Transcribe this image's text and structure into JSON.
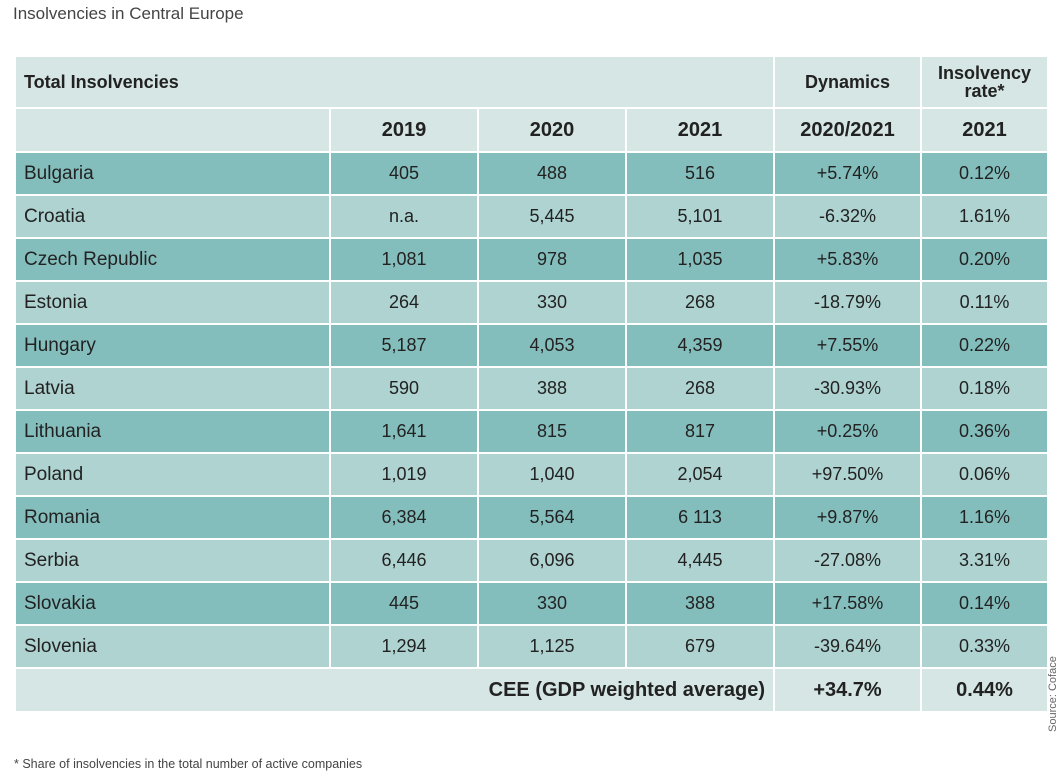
{
  "title": "Insolvencies in Central Europe",
  "table": {
    "header_row1": {
      "total_label": "Total Insolvencies",
      "dynamics_label": "Dynamics",
      "rate_label": "Insolvency rate*"
    },
    "header_row2": [
      "2019",
      "2020",
      "2021",
      "2020/2021",
      "2021"
    ],
    "rows": [
      {
        "country": "Bulgaria",
        "y2019": "405",
        "y2020": "488",
        "y2021": "516",
        "dynamics": "+5.74%",
        "rate": "0.12%"
      },
      {
        "country": "Croatia",
        "y2019": "n.a.",
        "y2020": "5,445",
        "y2021": "5,101",
        "dynamics": "-6.32%",
        "rate": "1.61%"
      },
      {
        "country": "Czech Republic",
        "y2019": "1,081",
        "y2020": "978",
        "y2021": "1,035",
        "dynamics": "+5.83%",
        "rate": "0.20%"
      },
      {
        "country": "Estonia",
        "y2019": "264",
        "y2020": "330",
        "y2021": "268",
        "dynamics": "-18.79%",
        "rate": "0.11%"
      },
      {
        "country": "Hungary",
        "y2019": "5,187",
        "y2020": "4,053",
        "y2021": "4,359",
        "dynamics": "+7.55%",
        "rate": "0.22%"
      },
      {
        "country": "Latvia",
        "y2019": "590",
        "y2020": "388",
        "y2021": "268",
        "dynamics": "-30.93%",
        "rate": "0.18%"
      },
      {
        "country": "Lithuania",
        "y2019": "1,641",
        "y2020": "815",
        "y2021": "817",
        "dynamics": "+0.25%",
        "rate": "0.36%"
      },
      {
        "country": "Poland",
        "y2019": "1,019",
        "y2020": "1,040",
        "y2021": "2,054",
        "dynamics": "+97.50%",
        "rate": "0.06%"
      },
      {
        "country": "Romania",
        "y2019": "6,384",
        "y2020": "5,564",
        "y2021": "6 113",
        "dynamics": "+9.87%",
        "rate": "1.16%"
      },
      {
        "country": "Serbia",
        "y2019": "6,446",
        "y2020": "6,096",
        "y2021": "4,445",
        "dynamics": "-27.08%",
        "rate": "3.31%"
      },
      {
        "country": "Slovakia",
        "y2019": "445",
        "y2020": "330",
        "y2021": "388",
        "dynamics": "+17.58%",
        "rate": "0.14%"
      },
      {
        "country": "Slovenia",
        "y2019": "1,294",
        "y2020": "1,125",
        "y2021": "679",
        "dynamics": "-39.64%",
        "rate": "0.33%"
      }
    ],
    "footer": {
      "label": "CEE (GDP weighted average)",
      "dynamics": "+34.7%",
      "rate": "0.44%"
    }
  },
  "footnote": "* Share of insolvencies in the total number of active companies",
  "source": "Source: Coface",
  "colors": {
    "header_bg": "#d5e6e4",
    "row_dark": "#84bebc",
    "row_light": "#aed3d1"
  }
}
